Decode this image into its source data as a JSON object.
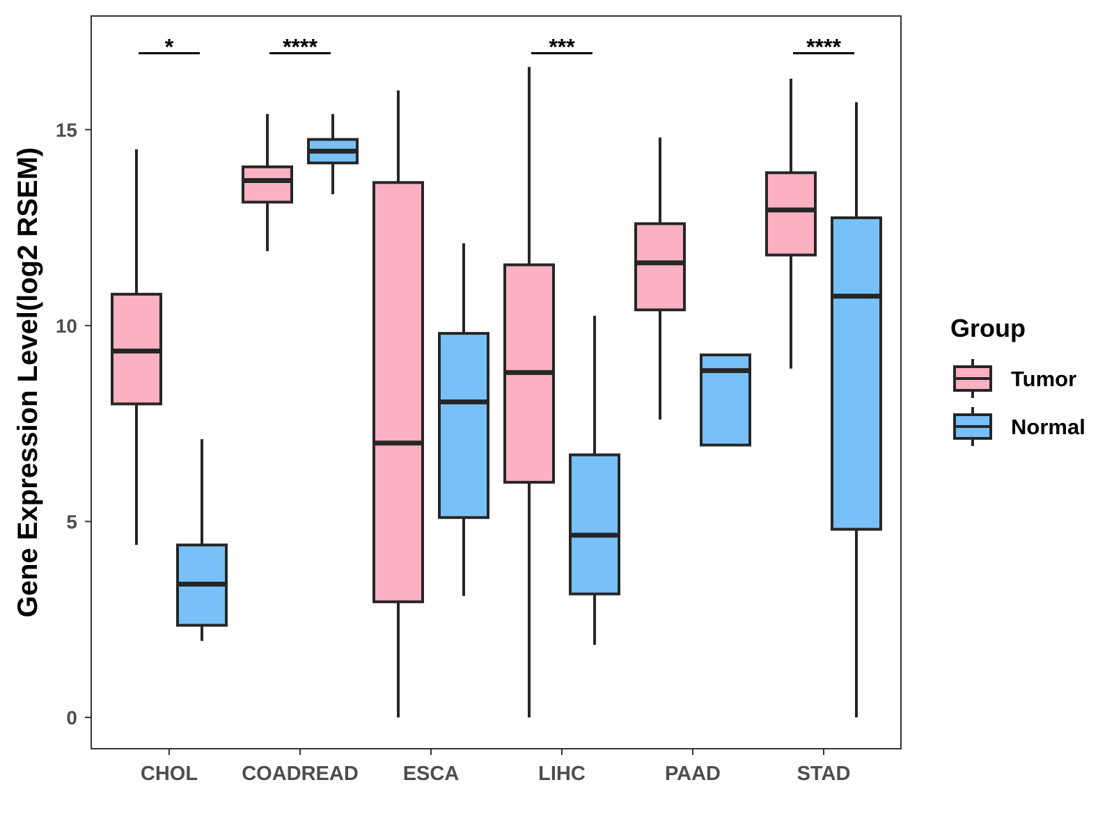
{
  "chart_data": {
    "type": "boxplot",
    "title": "",
    "xlabel": "",
    "ylabel": "Gene Expression Level(log2 RSEM)",
    "ylim": [
      -0.8,
      17.9
    ],
    "yticks": [
      0,
      5,
      10,
      15
    ],
    "grid": false,
    "legend_position": "right",
    "categories": [
      "CHOL",
      "COADREAD",
      "ESCA",
      "LIHC",
      "PAAD",
      "STAD"
    ],
    "legend": {
      "title": "Group",
      "entries": [
        "Tumor",
        "Normal"
      ]
    },
    "colors": {
      "Tumor": "#FBB1C2",
      "Normal": "#77C1F8",
      "outline": "#262626"
    },
    "series": [
      {
        "name": "Tumor",
        "boxes": [
          {
            "category": "CHOL",
            "whisker_low": 4.4,
            "q1": 8.0,
            "median": 9.35,
            "q3": 10.8,
            "whisker_high": 14.5
          },
          {
            "category": "COADREAD",
            "whisker_low": 11.9,
            "q1": 13.15,
            "median": 13.7,
            "q3": 14.05,
            "whisker_high": 15.4
          },
          {
            "category": "ESCA",
            "whisker_low": 0.0,
            "q1": 2.95,
            "median": 7.0,
            "q3": 13.65,
            "whisker_high": 16.0
          },
          {
            "category": "LIHC",
            "whisker_low": 0.0,
            "q1": 6.0,
            "median": 8.8,
            "q3": 11.55,
            "whisker_high": 16.6
          },
          {
            "category": "PAAD",
            "whisker_low": 7.6,
            "q1": 10.4,
            "median": 11.6,
            "q3": 12.6,
            "whisker_high": 14.8
          },
          {
            "category": "STAD",
            "whisker_low": 8.9,
            "q1": 11.8,
            "median": 12.95,
            "q3": 13.9,
            "whisker_high": 16.3
          }
        ]
      },
      {
        "name": "Normal",
        "boxes": [
          {
            "category": "CHOL",
            "whisker_low": 1.95,
            "q1": 2.35,
            "median": 3.4,
            "q3": 4.4,
            "whisker_high": 7.1
          },
          {
            "category": "COADREAD",
            "whisker_low": 13.35,
            "q1": 14.15,
            "median": 14.45,
            "q3": 14.75,
            "whisker_high": 15.4
          },
          {
            "category": "ESCA",
            "whisker_low": 3.1,
            "q1": 5.1,
            "median": 8.05,
            "q3": 9.8,
            "whisker_high": 12.1
          },
          {
            "category": "LIHC",
            "whisker_low": 1.85,
            "q1": 3.15,
            "median": 4.65,
            "q3": 6.7,
            "whisker_high": 10.25
          },
          {
            "category": "PAAD",
            "whisker_low": 6.95,
            "q1": 6.95,
            "median": 8.85,
            "q3": 9.25,
            "whisker_high": 9.25
          },
          {
            "category": "STAD",
            "whisker_low": 0.0,
            "q1": 4.8,
            "median": 10.75,
            "q3": 12.75,
            "whisker_high": 15.7
          }
        ]
      }
    ],
    "annotations": [
      {
        "category": "CHOL",
        "label": "*",
        "y": 16.95
      },
      {
        "category": "COADREAD",
        "label": "****",
        "y": 16.95
      },
      {
        "category": "LIHC",
        "label": "***",
        "y": 16.95
      },
      {
        "category": "STAD",
        "label": "****",
        "y": 16.95
      }
    ]
  }
}
